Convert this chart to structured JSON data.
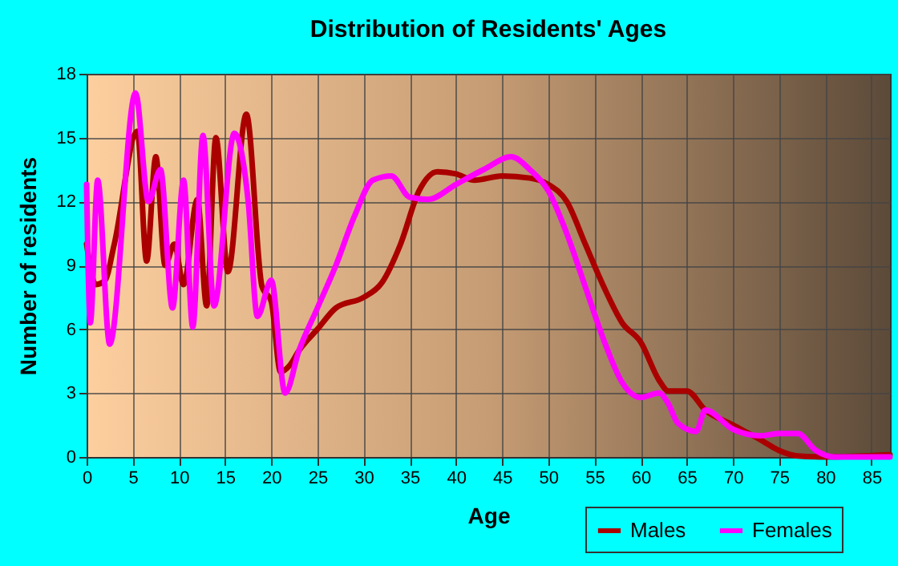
{
  "chart_data": {
    "type": "line",
    "title": "Distribution of Residents' Ages",
    "xlabel": "Age",
    "ylabel": "Number of residents",
    "xlim": [
      0,
      87
    ],
    "xticks": [
      0,
      5,
      10,
      15,
      20,
      25,
      30,
      35,
      40,
      45,
      50,
      55,
      60,
      65,
      70,
      75,
      80,
      85
    ],
    "ylim": [
      0,
      18
    ],
    "yticks": [
      0,
      3,
      6,
      9,
      12,
      15,
      18
    ],
    "grid": true,
    "legend": "bottom right",
    "series": [
      {
        "name": "Males",
        "color": "#aa0000",
        "x": [
          0,
          1,
          2,
          3,
          5.5,
          6.5,
          7.5,
          8.5,
          9.5,
          10.5,
          12,
          13,
          14,
          15.3,
          17.3,
          19,
          20,
          21,
          22,
          23,
          25,
          27,
          30,
          32,
          34,
          36,
          38,
          40,
          42,
          45,
          48,
          50,
          52,
          54,
          56,
          58,
          60,
          62,
          63,
          65,
          67,
          70,
          73,
          75,
          77,
          80,
          87
        ],
        "values": [
          10,
          8.1,
          8.3,
          10,
          15.3,
          9.2,
          14.1,
          9,
          10,
          8.1,
          12.1,
          7.1,
          15,
          8.7,
          16.1,
          8,
          7.3,
          4,
          4.3,
          5,
          6,
          7,
          7.5,
          8.2,
          10,
          12.5,
          13.4,
          13.3,
          13,
          13.2,
          13.1,
          12.8,
          12,
          10,
          8,
          6.3,
          5.4,
          3.6,
          3.1,
          3.1,
          2.2,
          1.5,
          0.8,
          0.3,
          0.05,
          0,
          0.1
        ]
      },
      {
        "name": "Females",
        "color": "#ff00ff",
        "x": [
          0,
          0.4,
          1.2,
          2.5,
          5.3,
          6.7,
          8,
          9.3,
          10.5,
          11.5,
          12.6,
          13.8,
          16,
          17.5,
          18.5,
          20,
          21.5,
          23,
          25,
          27,
          29,
          31,
          33,
          35,
          37,
          40,
          43,
          46,
          48,
          50,
          52,
          54,
          56,
          58,
          60,
          62,
          63,
          64,
          66,
          67,
          70,
          73,
          75,
          77,
          79,
          81,
          87
        ],
        "values": [
          12.8,
          6.3,
          13,
          5.3,
          17.1,
          12,
          13.5,
          7,
          13,
          6.1,
          15.1,
          7.1,
          15.2,
          12,
          6.6,
          8.3,
          3,
          5,
          7,
          9,
          11.3,
          13,
          13.2,
          12.2,
          12.1,
          12.8,
          13.5,
          14.1,
          13.5,
          12.5,
          10.5,
          8,
          5.5,
          3.5,
          2.8,
          3,
          2.5,
          1.6,
          1.2,
          2.2,
          1.3,
          1,
          1.1,
          1.1,
          0.3,
          0,
          0
        ]
      }
    ]
  }
}
